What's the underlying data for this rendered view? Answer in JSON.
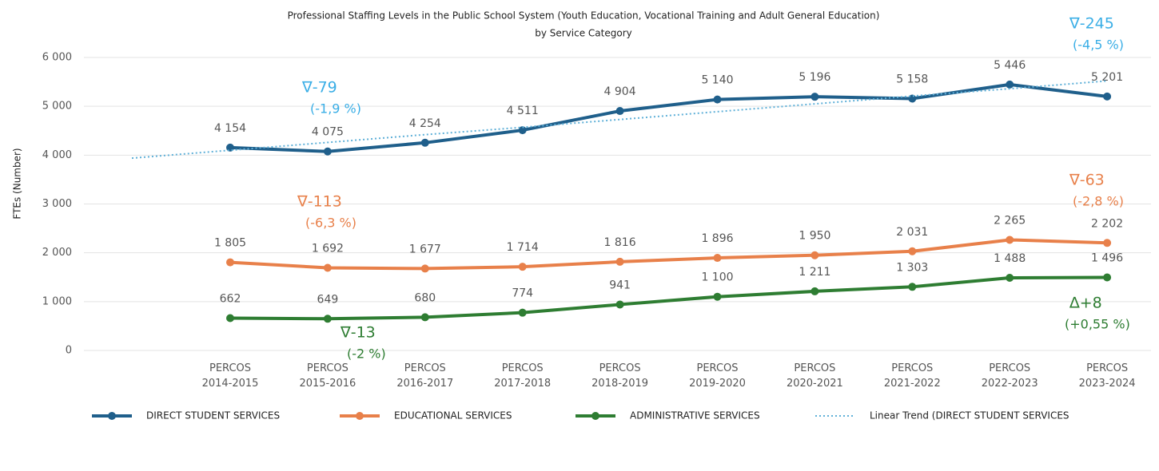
{
  "chart_data": {
    "type": "line",
    "title": "Professional Staffing Levels in the Public School System (Youth Education, Vocational Training and Adult General Education)",
    "subtitle": "by Service Category",
    "y_label": "FTEs (Number)",
    "categories": [
      "PERCOS\n2014-2015",
      "PERCOS\n2015-2016",
      "PERCOS\n2016-2017",
      "PERCOS\n2017-2018",
      "PERCOS\n2018-2019",
      "PERCOS\n2019-2020",
      "PERCOS\n2020-2021",
      "PERCOS\n2021-2022",
      "PERCOS\n2022-2023",
      "PERCOS\n2023-2024"
    ],
    "ylim": [
      0,
      6000
    ],
    "yticks": [
      0,
      {
        "value": 1000,
        "label": "1 000"
      },
      {
        "value": 2000,
        "label": "2 000"
      },
      {
        "value": 3000,
        "label": "3 000"
      },
      {
        "value": 4000,
        "label": "4 000"
      },
      {
        "value": 5000,
        "label": "5 000"
      },
      {
        "value": 6000,
        "label": "6 000"
      }
    ],
    "grid": true,
    "legend": "bottom",
    "series": [
      {
        "name": "DIRECT STUDENT SERVICES",
        "color": "#1f5f8b",
        "marker": true,
        "values": [
          4154,
          4075,
          4254,
          4511,
          4904,
          5140,
          5196,
          5158,
          5446,
          5201
        ],
        "value_labels": [
          "4 154",
          "4 075",
          "4 254",
          "4 511",
          "4 904",
          "5 140",
          "5 196",
          "5 158",
          "5 446",
          "5 201"
        ],
        "annotation_color": "#3aaee6",
        "annotations": [
          [
            "∇-79",
            "(-1,9 %)"
          ],
          [
            "∇-245",
            "(-4,5 %)"
          ]
        ]
      },
      {
        "name": "EDUCATIONAL SERVICES",
        "color": "#e8804a",
        "marker": true,
        "values": [
          1805,
          1692,
          1677,
          1714,
          1816,
          1896,
          1950,
          2031,
          2265,
          2202
        ],
        "value_labels": [
          "1 805",
          "1 692",
          "1 677",
          "1 714",
          "1 816",
          "1 896",
          "1 950",
          "2 031",
          "2 265",
          "2 202"
        ],
        "annotation_color": "#e8804a",
        "annotations": [
          [
            "∇-113",
            "(-6,3 %)"
          ],
          [
            "∇-63",
            "(-2,8 %)"
          ]
        ]
      },
      {
        "name": "ADMINISTRATIVE SERVICES",
        "color": "#2e7d32",
        "marker": true,
        "values": [
          662,
          649,
          680,
          774,
          941,
          1100,
          1211,
          1303,
          1488,
          1496
        ],
        "value_labels": [
          "662",
          "649",
          "680",
          "774",
          "941",
          "1 100",
          "1 211",
          "1 303",
          "1 488",
          "1 496"
        ],
        "annotation_color": "#2e7d32",
        "annotations": [
          [
            "∇-13",
            "(-2 %)"
          ],
          [
            "∆+8",
            "(+0,55 %)"
          ]
        ]
      },
      {
        "name": "Linear Trend (DIRECT STUDENT SERVICES",
        "color": "#5fb0d8",
        "marker": false,
        "dotted": true,
        "values": [
          4100,
          4260,
          4420,
          4570,
          4730,
          4890,
          5050,
          5210,
          5360,
          5520
        ]
      }
    ]
  }
}
